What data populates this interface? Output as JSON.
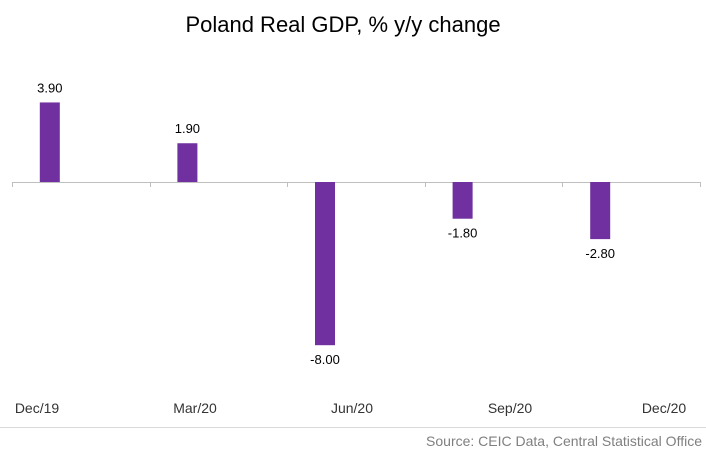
{
  "chart_data": {
    "type": "bar",
    "title": "Poland Real GDP, % y/y change",
    "categories": [
      "Dec/19",
      "Mar/20",
      "Jun/20",
      "Sep/20",
      "Dec/20"
    ],
    "values": [
      3.9,
      1.9,
      -8.0,
      -1.8,
      -2.8
    ],
    "value_labels": [
      "3.90",
      "1.90",
      "-8.00",
      "-1.80",
      "-2.80"
    ],
    "xlabel": "",
    "ylabel": "",
    "ylim": [
      -10,
      5
    ],
    "grid": false,
    "legend": "none",
    "bar_color": "#7030a0",
    "source": "Source: CEIC Data, Central Statistical Office"
  }
}
